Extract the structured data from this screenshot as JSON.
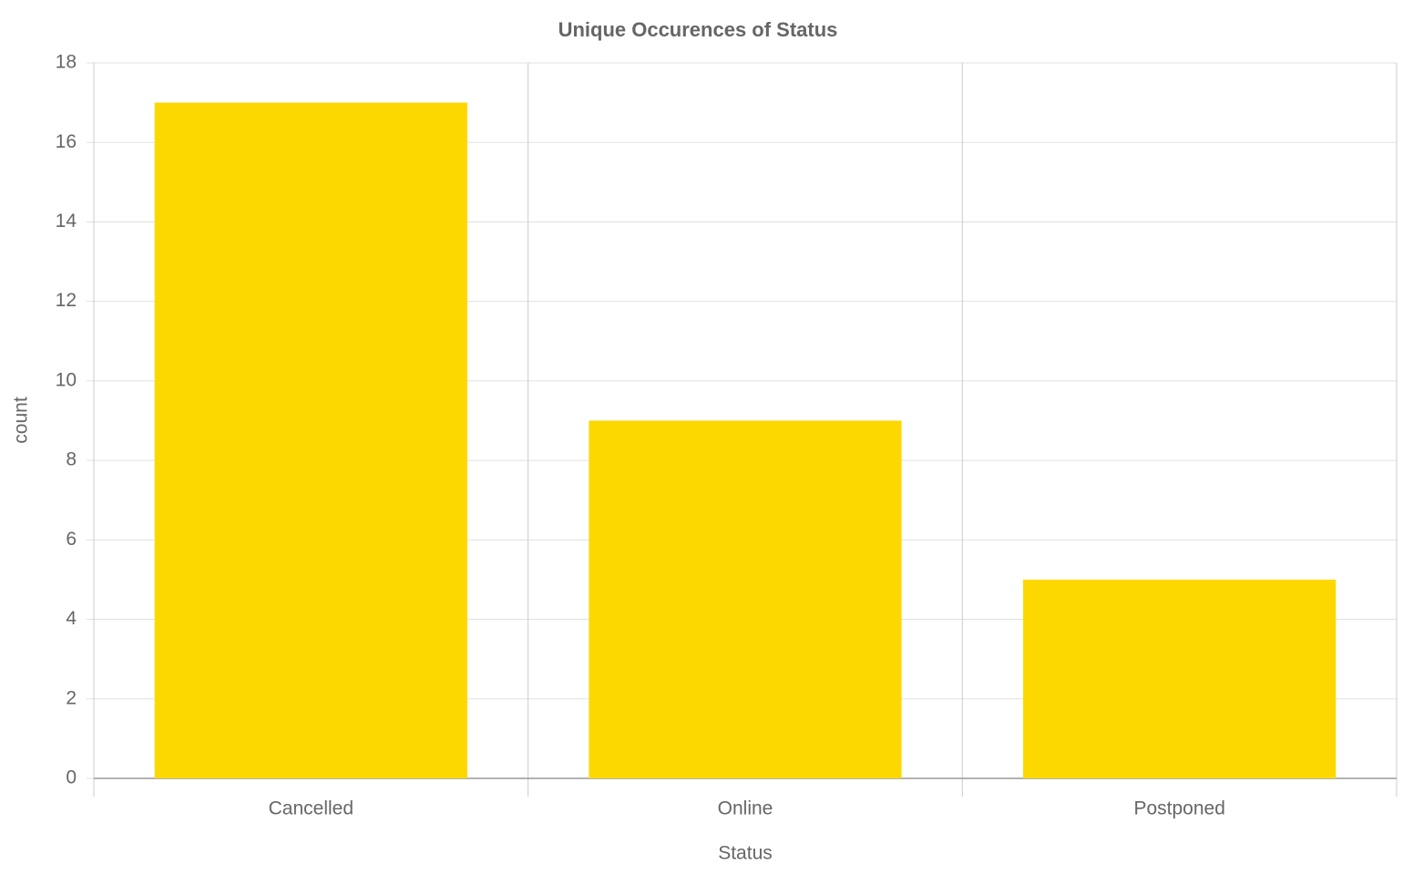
{
  "chart_data": {
    "type": "bar",
    "title": "Unique Occurences of Status",
    "x_label": "Status",
    "y_label": "count",
    "categories": [
      "Cancelled",
      "Online",
      "Postponed"
    ],
    "values": [
      17,
      9,
      5
    ],
    "color": "#fdd700",
    "ylim": [
      0,
      18
    ],
    "yticks": [
      0,
      2,
      4,
      6,
      8,
      10,
      12,
      14,
      16,
      18
    ],
    "grid": true
  }
}
